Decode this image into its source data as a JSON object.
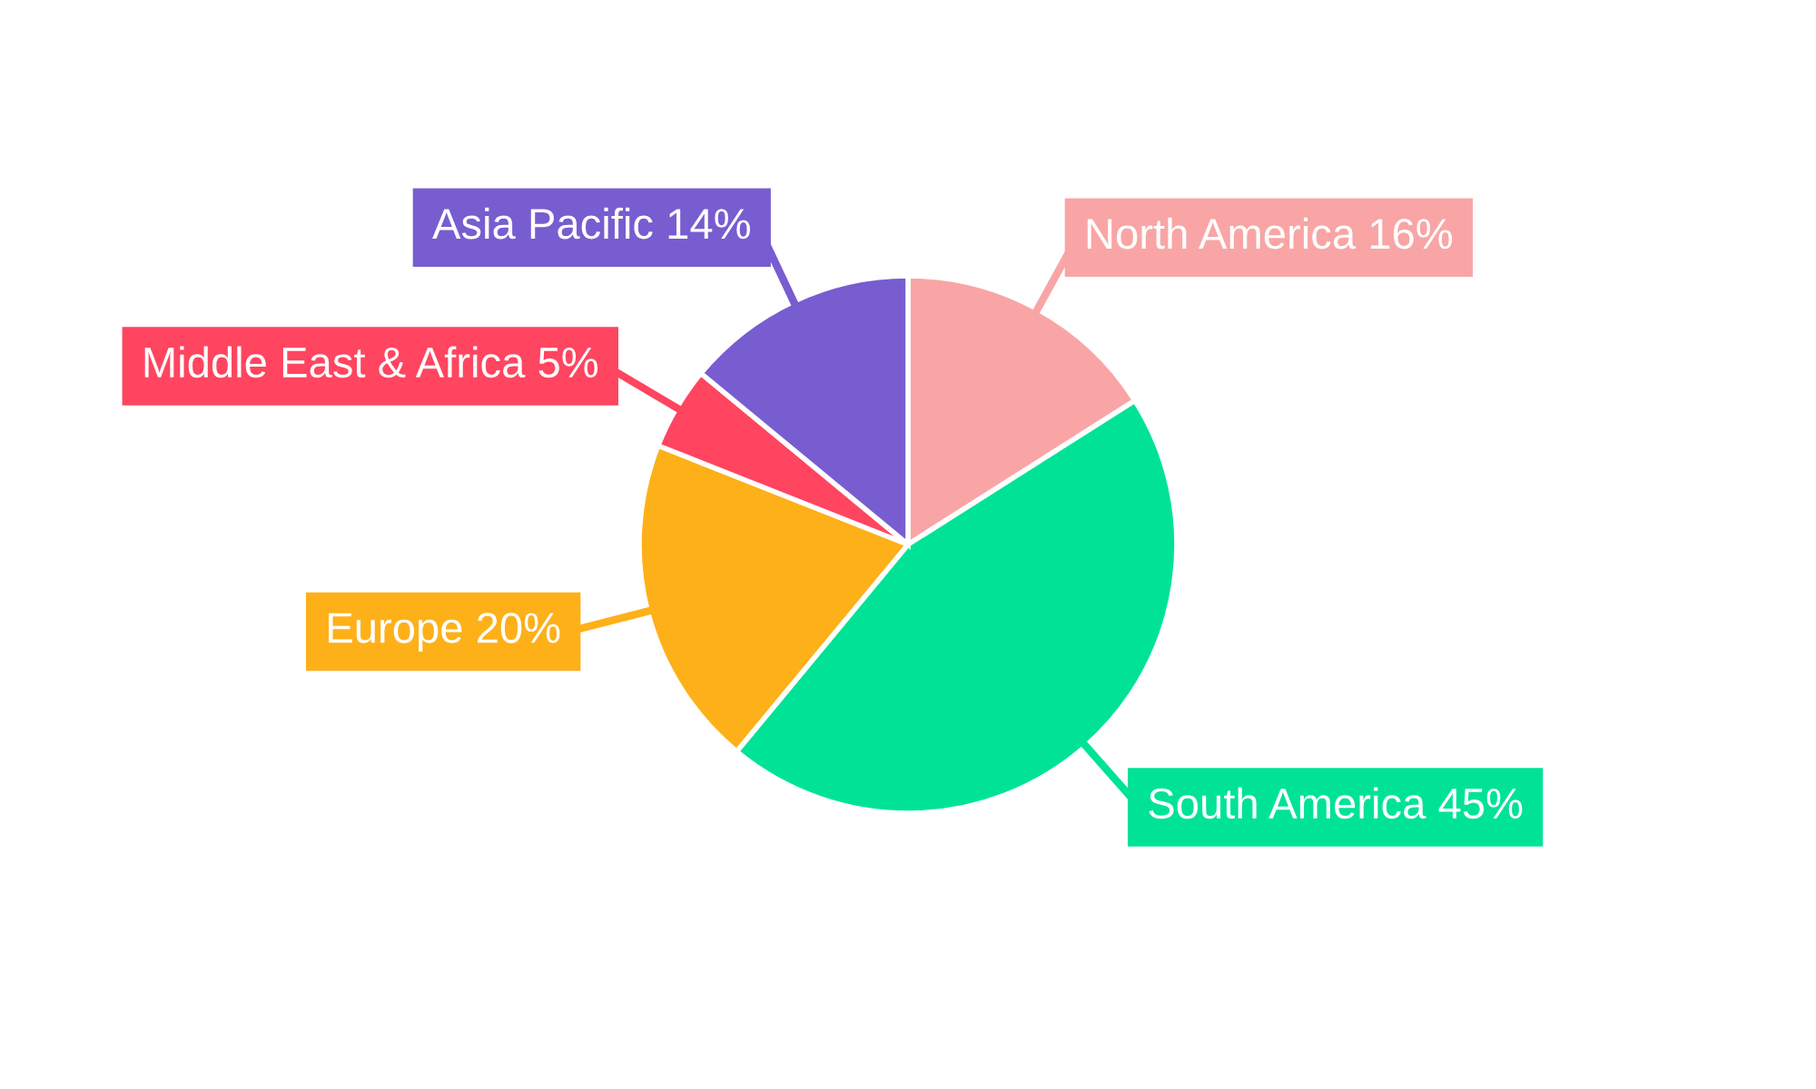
{
  "chart_data": {
    "type": "pie",
    "categories": [
      "North America",
      "South America",
      "Europe",
      "Middle East & Africa",
      "Asia Pacific"
    ],
    "values": [
      16,
      45,
      20,
      5,
      14
    ],
    "value_labels": [
      "16%",
      "45%",
      "20%",
      "5%",
      "14%"
    ],
    "colors": [
      "#f9a5a5",
      "#00e396",
      "#feb019",
      "#ff4560",
      "#775dd0"
    ],
    "legend": false
  }
}
